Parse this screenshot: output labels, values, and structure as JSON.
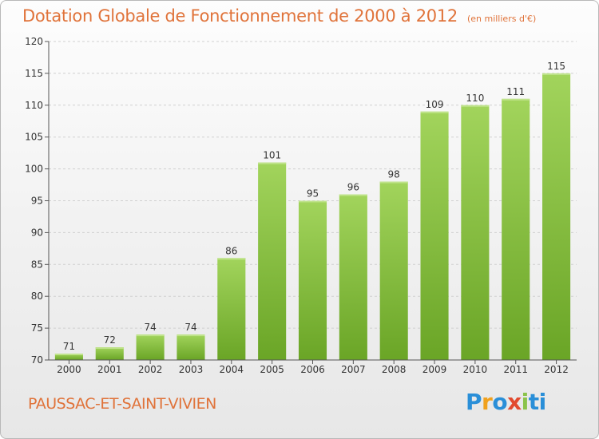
{
  "header": {
    "title": "Dotation Globale de Fonctionnement de 2000 à 2012",
    "subtitle": "(en milliers d'€)"
  },
  "footer": {
    "commune": "PAUSSAC-ET-SAINT-VIVIEN",
    "logo_letters": [
      "P",
      "r",
      "o",
      "x",
      "i",
      "t",
      "i"
    ]
  },
  "colors": {
    "title": "#e0733a",
    "bar_top": "#a2d45c",
    "bar_bottom": "#6aa526",
    "grid": "#d0d0d0",
    "axis_text": "#333333"
  },
  "chart_data": {
    "type": "bar",
    "title": "Dotation Globale de Fonctionnement de 2000 à 2012",
    "categories": [
      "2000",
      "2001",
      "2002",
      "2003",
      "2004",
      "2005",
      "2006",
      "2007",
      "2008",
      "2009",
      "2010",
      "2011",
      "2012"
    ],
    "values": [
      71,
      72,
      74,
      74,
      86,
      101,
      95,
      96,
      98,
      109,
      110,
      111,
      115
    ],
    "ylim": [
      70,
      120
    ],
    "yticks": [
      70,
      75,
      80,
      85,
      90,
      95,
      100,
      105,
      110,
      115,
      120
    ],
    "grid": true,
    "data_labels": true
  }
}
